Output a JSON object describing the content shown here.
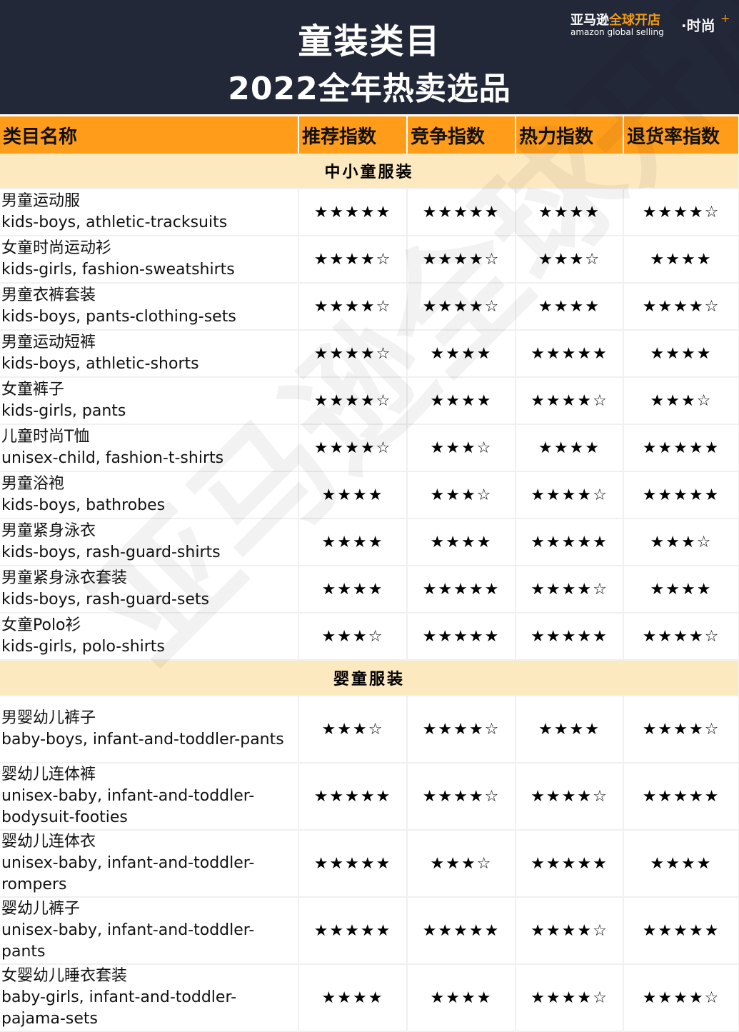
{
  "header": {
    "title_line1": "童装类目",
    "title_line2": "2022全年热卖选品",
    "logo": {
      "cn_white": "亚马逊",
      "cn_orange": "全球开店",
      "en": "amazon global selling",
      "suffix": "·时尚",
      "plus": "+"
    }
  },
  "columns": [
    "类目名称",
    "推荐指数",
    "竞争指数",
    "热力指数",
    "退货率指数"
  ],
  "sections": [
    {
      "title": "中小童服装",
      "rows": [
        {
          "cn": "男童运动服",
          "en": "kids-boys, athletic-tracksuits",
          "ratings": [
            "★★★★★",
            "★★★★★",
            "★★★★",
            "★★★★☆"
          ]
        },
        {
          "cn": "女童时尚运动衫",
          "en": "kids-girls, fashion-sweatshirts",
          "ratings": [
            "★★★★☆",
            "★★★★☆",
            "★★★☆",
            "★★★★"
          ]
        },
        {
          "cn": "男童衣裤套装",
          "en": "kids-boys, pants-clothing-sets",
          "ratings": [
            "★★★★☆",
            "★★★★☆",
            "★★★★",
            "★★★★☆"
          ]
        },
        {
          "cn": "男童运动短裤",
          "en": "kids-boys, athletic-shorts",
          "ratings": [
            "★★★★☆",
            "★★★★",
            "★★★★★",
            "★★★★"
          ]
        },
        {
          "cn": "女童裤子",
          "en": "kids-girls, pants",
          "ratings": [
            "★★★★☆",
            "★★★★",
            "★★★★☆",
            "★★★☆"
          ]
        },
        {
          "cn": "儿童时尚T恤",
          "en": "unisex-child, fashion-t-shirts",
          "ratings": [
            "★★★★☆",
            "★★★☆",
            "★★★★",
            "★★★★★"
          ]
        },
        {
          "cn": "男童浴袍",
          "en": "kids-boys, bathrobes",
          "ratings": [
            "★★★★",
            "★★★☆",
            "★★★★☆",
            "★★★★★"
          ]
        },
        {
          "cn": "男童紧身泳衣",
          "en": "kids-boys, rash-guard-shirts",
          "ratings": [
            "★★★★",
            "★★★★",
            "★★★★★",
            "★★★☆"
          ]
        },
        {
          "cn": "男童紧身泳衣套装",
          "en": "kids-boys, rash-guard-sets",
          "ratings": [
            "★★★★",
            "★★★★★",
            "★★★★☆",
            "★★★★"
          ]
        },
        {
          "cn": "女童Polo衫",
          "en": "kids-girls, polo-shirts",
          "ratings": [
            "★★★☆",
            "★★★★★",
            "★★★★★",
            "★★★★☆"
          ]
        }
      ]
    },
    {
      "title": "婴童服装",
      "rows": [
        {
          "cn": "男婴幼儿裤子",
          "en": "baby-boys, infant-and-toddler-pants",
          "ratings": [
            "★★★☆",
            "★★★★☆",
            "★★★★",
            "★★★★☆"
          ]
        },
        {
          "cn": "婴幼儿连体裤",
          "en": "unisex-baby, infant-and-toddler-bodysuit-footies",
          "ratings": [
            "★★★★★",
            "★★★★☆",
            "★★★★☆",
            "★★★★★"
          ]
        },
        {
          "cn": "婴幼儿连体衣",
          "en": "unisex-baby, infant-and-toddler-rompers",
          "ratings": [
            "★★★★★",
            "★★★☆",
            "★★★★★",
            "★★★★"
          ]
        },
        {
          "cn": "婴幼儿裤子",
          "en": "unisex-baby, infant-and-toddler-pants",
          "ratings": [
            "★★★★★",
            "★★★★★",
            "★★★★☆",
            "★★★★★"
          ]
        },
        {
          "cn": "女婴幼儿睡衣套装",
          "en": "baby-girls, infant-and-toddler-pajama-sets",
          "ratings": [
            "★★★★",
            "★★★★",
            "★★★★☆",
            "★★★★☆"
          ]
        }
      ]
    }
  ],
  "watermark": "亚马逊全球开店"
}
